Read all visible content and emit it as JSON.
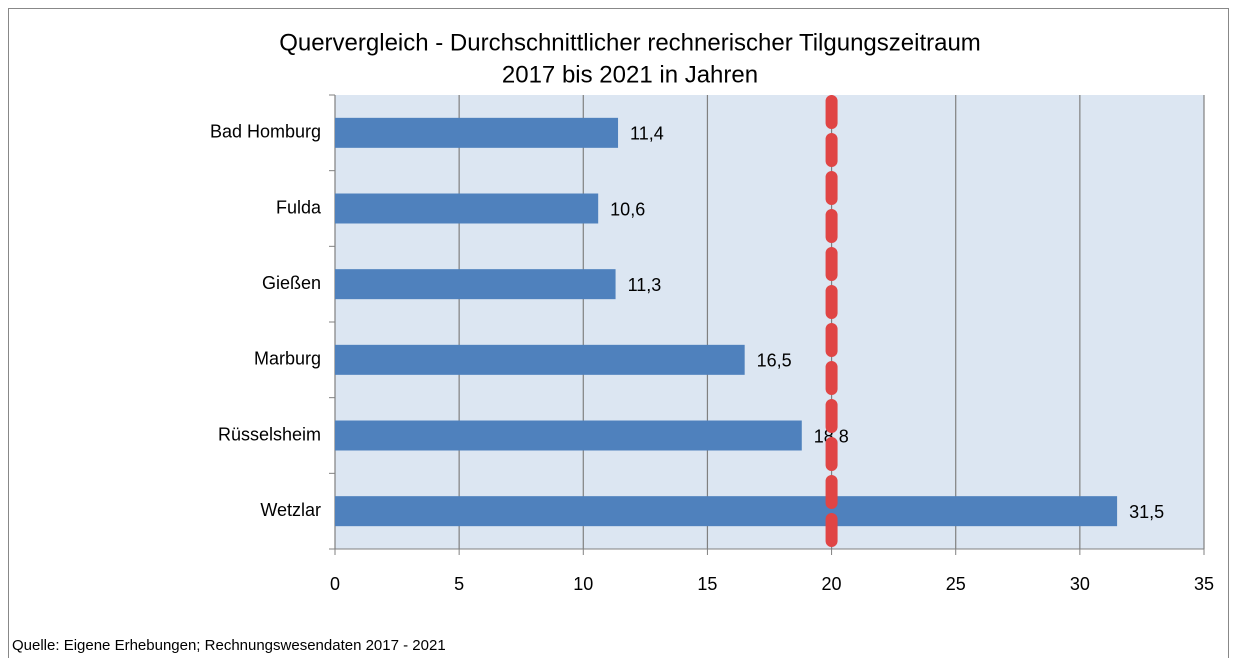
{
  "chart_data": {
    "type": "bar",
    "orientation": "horizontal",
    "title": [
      "Quervergleich - Durchschnittlicher rechnerischer Tilgungszeitraum",
      "2017 bis 2021 in Jahren"
    ],
    "categories": [
      "Bad Homburg",
      "Fulda",
      "Gießen",
      "Marburg",
      "Rüsselsheim",
      "Wetzlar"
    ],
    "values": [
      11.4,
      10.6,
      11.3,
      16.5,
      18.8,
      31.5
    ],
    "value_labels": [
      "11,4",
      "10,6",
      "11,3",
      "16,5",
      "18,8",
      "31,5"
    ],
    "color": "#4f81bd",
    "xlim": [
      0,
      35
    ],
    "xticks": [
      0,
      5,
      10,
      15,
      20,
      25,
      30,
      35
    ],
    "grid": true,
    "reference_line": {
      "value": 20,
      "color": "#e04545"
    },
    "source": "Quelle: Eigene Erhebungen;  Rechnungswesendaten  2017 - 2021"
  }
}
